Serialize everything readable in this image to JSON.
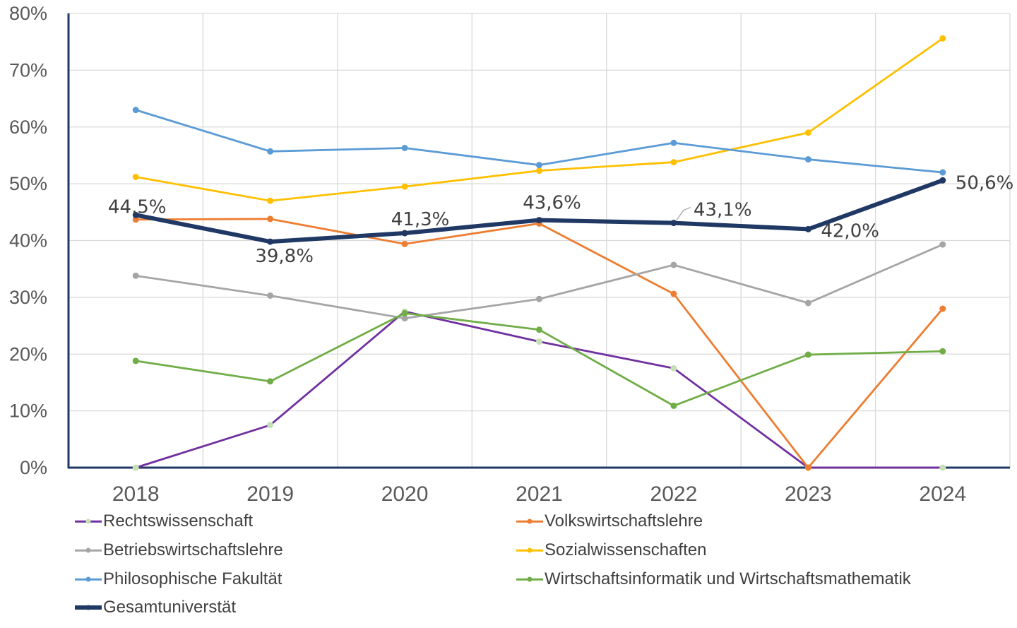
{
  "chart_data": {
    "type": "line",
    "title": "",
    "xlabel": "",
    "ylabel": "",
    "categories": [
      "2018",
      "2019",
      "2020",
      "2021",
      "2022",
      "2023",
      "2024"
    ],
    "ylim": [
      0,
      0.8
    ],
    "yticks": [
      {
        "value": 0.0,
        "label": "0%"
      },
      {
        "value": 0.1,
        "label": "10%"
      },
      {
        "value": 0.2,
        "label": "20%"
      },
      {
        "value": 0.3,
        "label": "30%"
      },
      {
        "value": 0.4,
        "label": "40%"
      },
      {
        "value": 0.5,
        "label": "50%"
      },
      {
        "value": 0.6,
        "label": "60%"
      },
      {
        "value": 0.7,
        "label": "70%"
      },
      {
        "value": 0.8,
        "label": "80%"
      }
    ],
    "grid": true,
    "legend_position": "bottom",
    "series": [
      {
        "name": "Rechtswissenschaft",
        "color": "#7030a0",
        "marker_color": "#c5e0b4",
        "values": [
          0.0,
          0.075,
          0.275,
          0.222,
          0.175,
          0.0,
          0.0
        ]
      },
      {
        "name": "Volkswirtschaftslehre",
        "color": "#ed7d31",
        "marker_color": "#ed7d31",
        "values": [
          0.437,
          0.438,
          0.394,
          0.43,
          0.306,
          0.0,
          0.28
        ]
      },
      {
        "name": "Betriebswirtschaftslehre",
        "color": "#a5a5a5",
        "marker_color": "#a5a5a5",
        "values": [
          0.338,
          0.303,
          0.263,
          0.297,
          0.357,
          0.29,
          0.393
        ]
      },
      {
        "name": "Sozialwissenschaften",
        "color": "#ffc000",
        "marker_color": "#ffc000",
        "values": [
          0.512,
          0.47,
          0.495,
          0.523,
          0.538,
          0.59,
          0.756
        ]
      },
      {
        "name": "Philosophische Fakultät",
        "color": "#5b9bd5",
        "marker_color": "#5b9bd5",
        "values": [
          0.63,
          0.557,
          0.563,
          0.533,
          0.572,
          0.543,
          0.52
        ]
      },
      {
        "name": "Wirtschaftsinformatik und Wirtschaftsmathematik",
        "color": "#70ad47",
        "marker_color": "#70ad47",
        "values": [
          0.188,
          0.152,
          0.272,
          0.243,
          0.109,
          0.199,
          0.205
        ]
      },
      {
        "name": "Gesamtuniverstät",
        "color": "#203864",
        "marker_color": "#203864",
        "bold": true,
        "values": [
          0.445,
          0.398,
          0.413,
          0.436,
          0.431,
          0.42,
          0.506
        ],
        "data_labels": [
          "44,5%",
          "39,8%",
          "41,3%",
          "43,6%",
          "43,1%",
          "42,0%",
          "50,6%"
        ]
      }
    ]
  }
}
